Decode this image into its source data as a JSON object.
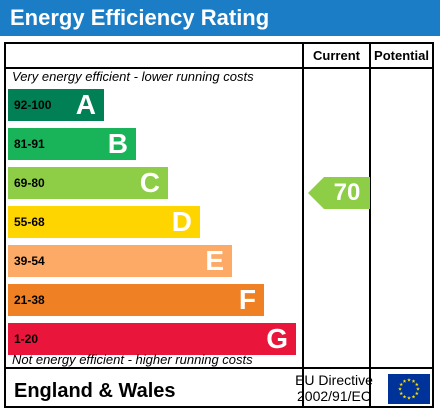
{
  "title": "Energy Efficiency Rating",
  "columns": {
    "current": "Current",
    "potential": "Potential"
  },
  "top_note": "Very energy efficient - lower running costs",
  "bottom_note": "Not energy efficient - higher running costs",
  "bands": [
    {
      "range": "92-100",
      "letter": "A",
      "color": "#008054",
      "range_color": "#000000"
    },
    {
      "range": "81-91",
      "letter": "B",
      "color": "#19b459",
      "range_color": "#000000"
    },
    {
      "range": "69-80",
      "letter": "C",
      "color": "#8dce46",
      "range_color": "#000000"
    },
    {
      "range": "55-68",
      "letter": "D",
      "color": "#ffd500",
      "range_color": "#000000"
    },
    {
      "range": "39-54",
      "letter": "E",
      "color": "#fcaa65",
      "range_color": "#000000"
    },
    {
      "range": "21-38",
      "letter": "F",
      "color": "#ef8023",
      "range_color": "#000000"
    },
    {
      "range": "1-20",
      "letter": "G",
      "color": "#e9153b",
      "range_color": "#000000"
    }
  ],
  "current_rating": {
    "value": "70",
    "band": "C",
    "color": "#8dce46"
  },
  "potential_rating": null,
  "footer": {
    "region": "England & Wales",
    "directive_line1": "EU Directive",
    "directive_line2": "2002/91/EC",
    "flag_icon": "eu-flag-icon",
    "flag_color": "#003399",
    "star_color": "#ffdd00"
  }
}
